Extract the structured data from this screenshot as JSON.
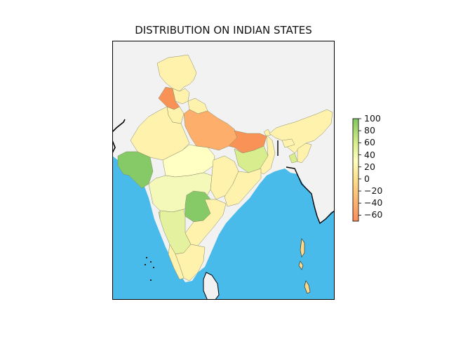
{
  "chart_data": {
    "type": "choropleth",
    "title": "DISTRIBUTION ON INDIAN STATES",
    "colorbar": {
      "range": [
        -70,
        100
      ],
      "ticks": [
        "100",
        "80",
        "60",
        "40",
        "20",
        "0",
        "−20",
        "−40",
        "−60"
      ],
      "tick_values": [
        100,
        80,
        60,
        40,
        20,
        0,
        -20,
        -40,
        -60
      ],
      "colormap_stops": [
        {
          "v": -70,
          "color": "#fc8d59"
        },
        {
          "v": 0,
          "color": "#fee08b"
        },
        {
          "v": 30,
          "color": "#ffffbf"
        },
        {
          "v": 60,
          "color": "#d9ef8b"
        },
        {
          "v": 100,
          "color": "#7fc75f"
        }
      ]
    },
    "colors": {
      "ocean": "#48bbeb",
      "land_outside": "#f2f2f2",
      "state_border": "#7a7a5a"
    }
  }
}
